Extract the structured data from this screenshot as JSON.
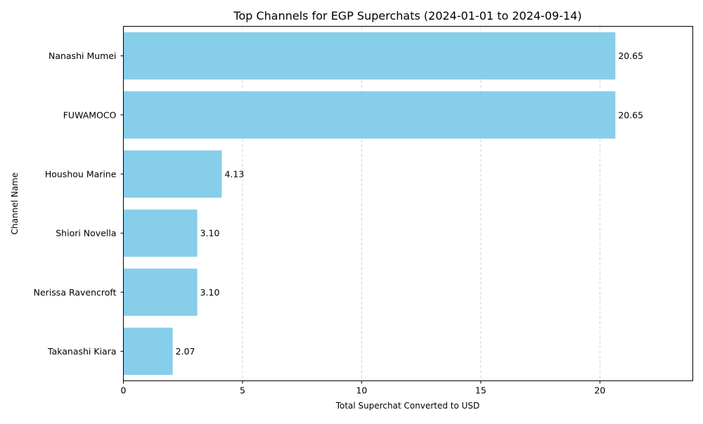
{
  "chart_data": {
    "type": "bar",
    "orientation": "horizontal",
    "title": "Top Channels for EGP Superchats (2024-01-01 to 2024-09-14)",
    "xlabel": "Total Superchat Converted to USD",
    "ylabel": "Channel Name",
    "categories": [
      "Nanashi Mumei",
      "FUWAMOCO",
      "Houshou Marine",
      "Shiori Novella",
      "Nerissa Ravencroft",
      "Takanashi Kiara"
    ],
    "values": [
      20.65,
      20.65,
      4.13,
      3.1,
      3.1,
      2.07
    ],
    "data_labels": [
      "20.65",
      "20.65",
      "4.13",
      "3.10",
      "3.10",
      "2.07"
    ],
    "xlim": [
      0,
      23.9
    ],
    "x_ticks": [
      0,
      5,
      10,
      15,
      20
    ],
    "x_tick_labels": [
      "0",
      "5",
      "10",
      "15",
      "20"
    ],
    "grid": "x-axis dashed",
    "bar_color": "#87ceeb",
    "grid_color": "#c8c8c8"
  }
}
